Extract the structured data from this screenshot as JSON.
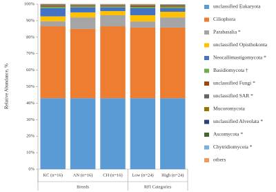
{
  "chart_data": {
    "type": "stacked_bar",
    "y_label": "Relative Abundance, %",
    "categories": [
      "KC (n=16)",
      "AN (n=16)",
      "CH (n=16)",
      "Low (n=24)",
      "High (n=24)"
    ],
    "groups": [
      "Breeds",
      "RFI Categories"
    ],
    "ylim": [
      0,
      100
    ],
    "yticks": [
      {
        "value": 0,
        "label": "0%"
      },
      {
        "value": 10,
        "label": "10%"
      },
      {
        "value": 20,
        "label": "20%"
      },
      {
        "value": 30,
        "label": "30%"
      },
      {
        "value": 40,
        "label": "40%"
      },
      {
        "value": 50,
        "label": "50%"
      },
      {
        "value": 60,
        "label": "60%"
      },
      {
        "value": 70,
        "label": "70%"
      },
      {
        "value": 80,
        "label": "80%"
      },
      {
        "value": 90,
        "label": "90%"
      },
      {
        "value": 100,
        "label": "100%"
      }
    ],
    "series": [
      {
        "name": "unclassified Eukaryota",
        "color": "#5b9bd5",
        "values": [
          43,
          43,
          43,
          43,
          43
        ]
      },
      {
        "name": "Ciliophora",
        "color": "#ed7d31",
        "values": [
          43.6,
          42,
          43.6,
          42.8,
          42.8
        ]
      },
      {
        "name": "Parabasalia *",
        "color": "#a5a5a5",
        "values": [
          3,
          7,
          6.7,
          3.7,
          6.2
        ]
      },
      {
        "name": "unclassified Opisthokonta",
        "color": "#ffc000",
        "values": [
          3,
          3,
          2.5,
          3.8,
          3.4
        ]
      },
      {
        "name": "Neocallimastigomycota *",
        "color": "#4472c4",
        "values": [
          5,
          3,
          2.2,
          4.2,
          2.1
        ]
      },
      {
        "name": "Basidiomycota †",
        "color": "#70ad47",
        "values": [
          0.8,
          0.6,
          0.6,
          0.8,
          0.7
        ]
      },
      {
        "name": "unclassified Fungi *",
        "color": "#9e480e",
        "values": [
          0.5,
          0.4,
          0.4,
          0.5,
          0.4
        ]
      },
      {
        "name": "unclassified SAR *",
        "color": "#636363",
        "values": [
          0.4,
          0.3,
          0.3,
          0.4,
          0.3
        ]
      },
      {
        "name": "Mucoromycota",
        "color": "#997300",
        "values": [
          0.3,
          0.2,
          0.2,
          0.3,
          0.3
        ]
      },
      {
        "name": "unclassified Alveolata *",
        "color": "#264478",
        "values": [
          0.2,
          0.2,
          0.2,
          0.2,
          0.3
        ]
      },
      {
        "name": "Ascomycota *",
        "color": "#43682b",
        "values": [
          0.1,
          0.1,
          0.1,
          0.1,
          0.2
        ]
      },
      {
        "name": "Chytridiomycota *",
        "color": "#7cafdd",
        "values": [
          0.1,
          0.1,
          0.1,
          0.1,
          0.1
        ]
      },
      {
        "name": "others",
        "color": "#f1975a",
        "values": [
          0.2,
          0.2,
          0.2,
          0.2,
          0.2
        ]
      }
    ]
  }
}
